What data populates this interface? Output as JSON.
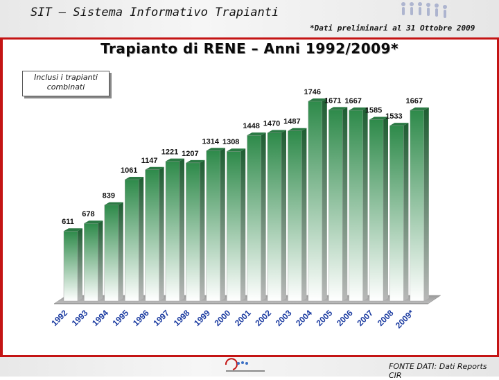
{
  "header": {
    "app_title": "SIT – Sistema Informativo Trapianti",
    "note": "*Dati preliminari al 31 Ottobre 2009"
  },
  "annotation": {
    "line1": "Inclusi i trapianti",
    "line2": "combinati"
  },
  "footer": {
    "source": "FONTE DATI: Dati Reports CIR"
  },
  "colors": {
    "bar_top": "#2e8a4a",
    "bar_bottom": "#ffffff",
    "accent": "#c41414"
  },
  "chart_data": {
    "type": "bar",
    "title": "Trapianto di RENE – Anni 1992/2009*",
    "categories": [
      "1992",
      "1993",
      "1994",
      "1995",
      "1996",
      "1997",
      "1998",
      "1999",
      "2000",
      "2001",
      "2002",
      "2003",
      "2004",
      "2005",
      "2006",
      "2007",
      "2008",
      "2009*"
    ],
    "values": [
      611,
      678,
      839,
      1061,
      1147,
      1221,
      1207,
      1314,
      1308,
      1448,
      1470,
      1487,
      1746,
      1671,
      1667,
      1585,
      1533,
      1667
    ],
    "xlabel": "",
    "ylabel": "",
    "ylim": [
      0,
      1850
    ],
    "grid": false,
    "legend": "none"
  }
}
